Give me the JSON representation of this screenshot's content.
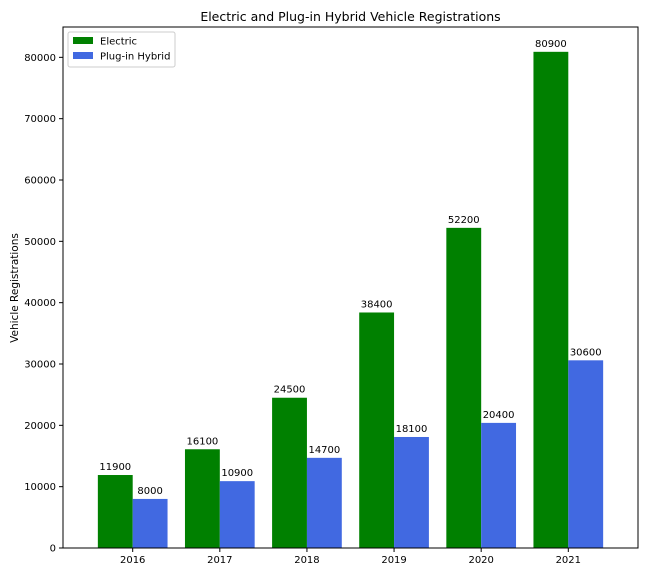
{
  "chart_data": {
    "type": "bar",
    "title": "Electric and Plug-in Hybrid Vehicle Registrations",
    "xlabel": "",
    "ylabel": "Vehicle Registrations",
    "categories": [
      "2016",
      "2017",
      "2018",
      "2019",
      "2020",
      "2021"
    ],
    "series": [
      {
        "name": "Electric",
        "color": "#008000",
        "values": [
          11900,
          16100,
          24500,
          38400,
          52200,
          80900
        ]
      },
      {
        "name": "Plug-in Hybrid",
        "color": "#4169E1",
        "values": [
          8000,
          10900,
          14700,
          18100,
          20400,
          30600
        ]
      }
    ],
    "ylim": [
      0,
      84947
    ],
    "yticks": [
      0,
      10000,
      20000,
      30000,
      40000,
      50000,
      60000,
      70000,
      80000
    ],
    "legend_position": "top-left",
    "grid": false
  }
}
